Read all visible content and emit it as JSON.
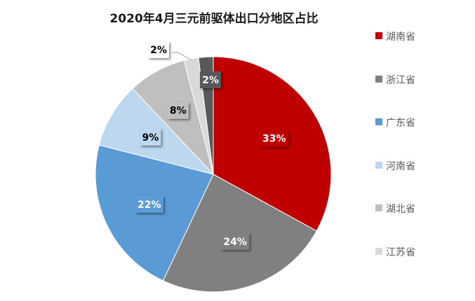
{
  "chart_data": {
    "type": "pie",
    "title": "2020年4月三元前驱体出口分地区占比",
    "start_angle": "12 o'clock, clockwise",
    "slices": [
      {
        "name": "湖南省",
        "value": 33,
        "label": "33%",
        "color": "#C00000"
      },
      {
        "name": "浙江省",
        "value": 24,
        "label": "24%",
        "color": "#808080"
      },
      {
        "name": "广东省",
        "value": 22,
        "label": "22%",
        "color": "#5B9BD5"
      },
      {
        "name": "河南省",
        "value": 9,
        "label": "9%",
        "color": "#BDD7EE"
      },
      {
        "name": "湖北省",
        "value": 8,
        "label": "8%",
        "color": "#BFBFBF"
      },
      {
        "name": "江苏省",
        "value": 2,
        "label": "2%",
        "color": "#D9D9D9"
      },
      {
        "name": "",
        "value": 2,
        "label": "2%",
        "color": "#595959"
      }
    ],
    "legend_position": "right"
  }
}
